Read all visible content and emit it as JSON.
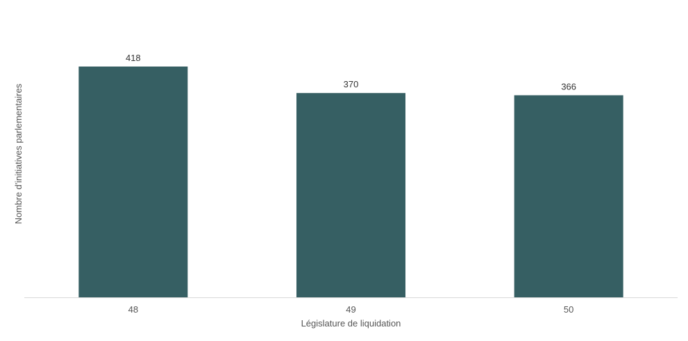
{
  "chart_data": {
    "type": "bar",
    "categories": [
      "48",
      "49",
      "50"
    ],
    "values": [
      418,
      370,
      366
    ],
    "xlabel": "Législature de liquidation",
    "ylabel": "Nombre d'initiatives parlementaires",
    "ylim": [
      0,
      418
    ],
    "grid": false,
    "bar_color": "#365f63",
    "axis_color": "#d9d9d9"
  }
}
